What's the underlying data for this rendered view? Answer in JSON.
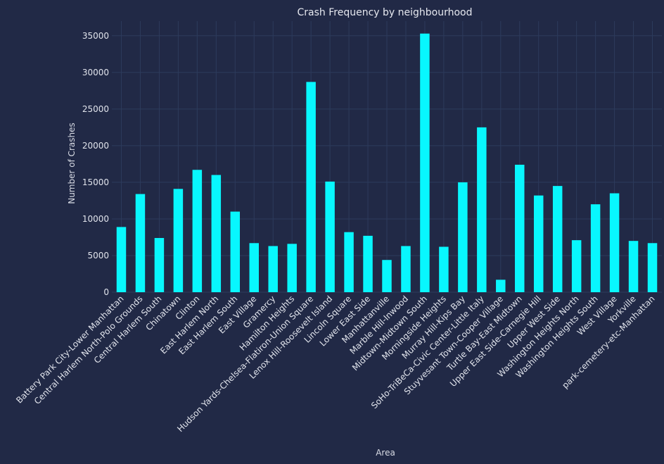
{
  "colors": {
    "background": "#212946",
    "bar": "#08F7FE",
    "grid": "#2d3b5c",
    "text": "#e1e4ec"
  },
  "chart_data": {
    "type": "bar",
    "title": "Crash Frequency by neighbourhood",
    "xlabel": "Area",
    "ylabel": "Number of Crashes",
    "ylim": [
      0,
      37000
    ],
    "yticks": [
      0,
      5000,
      10000,
      15000,
      20000,
      25000,
      30000,
      35000
    ],
    "grid": true,
    "categories": [
      "Battery Park City-Lower Manhattan",
      "Central Harlem North-Polo Grounds",
      "Central Harlem South",
      "Chinatown",
      "Clinton",
      "East Harlem North",
      "East Harlem South",
      "East Village",
      "Gramercy",
      "Hamilton Heights",
      "Hudson Yards-Chelsea-Flatiron-Union Square",
      "Lenox Hill-Roosevelt Island",
      "Lincoln Square",
      "Lower East Side",
      "Manhattanville",
      "Marble Hill-Inwood",
      "Midtown-Midtown South",
      "Morningside Heights",
      "Murray Hill-Kips Bay",
      "SoHo-TriBeCa-Civic Center-Little Italy",
      "Stuyvesant Town-Cooper Village",
      "Turtle Bay-East Midtown",
      "Upper East Side-Carnegie Hill",
      "Upper West Side",
      "Washington Heights North",
      "Washington Heights South",
      "West Village",
      "Yorkville",
      "park-cemetery-etc-Manhattan"
    ],
    "values": [
      8900,
      13400,
      7400,
      14100,
      16700,
      16000,
      11000,
      6700,
      6300,
      6600,
      28700,
      15100,
      8200,
      7700,
      4400,
      6300,
      35300,
      6200,
      15000,
      22500,
      1700,
      17400,
      13200,
      14500,
      7100,
      12000,
      13500,
      7000,
      6700
    ]
  }
}
